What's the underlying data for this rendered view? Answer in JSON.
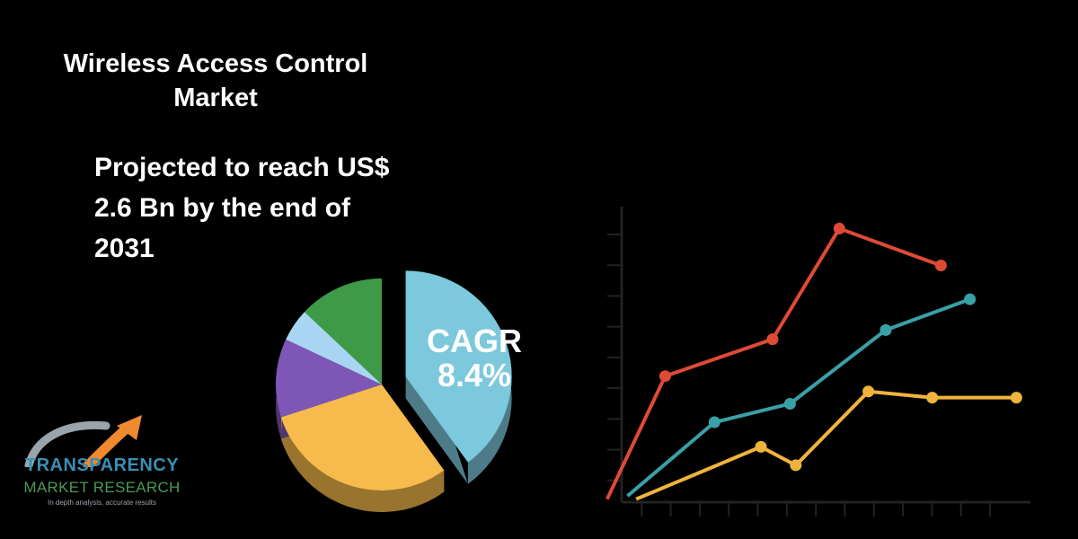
{
  "heading": {
    "title_line1": "Wireless Access Control",
    "title_line2": "Market",
    "projection_line1": "Projected to reach US$",
    "projection_line2": "2.6 Bn by the end of",
    "projection_line3": "2031"
  },
  "pie": {
    "cagr_label": "CAGR",
    "cagr_value": "8.4%"
  },
  "logo": {
    "line1": "TRANSPARENCY",
    "line2": "MARKET RESEARCH",
    "tagline": "In depth analysis, accurate results"
  },
  "colors": {
    "background": "#000000",
    "text": "#ffffff",
    "red": "#e04a35",
    "teal": "#3aa0a8",
    "yellow": "#f0b43c",
    "pie_blue": "#7cc8dc",
    "pie_yellow": "#f6bb4c",
    "pie_purple": "#7e56b6",
    "pie_light_blue": "#a8d6f2",
    "pie_green": "#3f9a47",
    "logo_orange": "#f08a2e",
    "logo_blue": "#3a8fb4",
    "logo_green": "#4a9a5a"
  },
  "chart_data": [
    {
      "type": "pie",
      "slices": [
        {
          "label": "CAGR 8.4%",
          "value": 0.4,
          "color": "#7cc8dc"
        },
        {
          "label": "",
          "value": 0.3,
          "color": "#f6bb4c"
        },
        {
          "label": "",
          "value": 0.12,
          "color": "#7e56b6"
        },
        {
          "label": "",
          "value": 0.05,
          "color": "#a8d6f2"
        },
        {
          "label": "",
          "value": 0.13,
          "color": "#3f9a47"
        }
      ],
      "exploded_slice": 0,
      "style": "3d"
    },
    {
      "type": "line",
      "title": "",
      "xlabel": "",
      "ylabel": "",
      "x_ticks": 13,
      "y_ticks": 9,
      "xlim": [
        0,
        13
      ],
      "ylim": [
        0,
        9
      ],
      "grid": false,
      "series": [
        {
          "color": "#e04a35",
          "points": [
            [
              -0.5,
              0.1
            ],
            [
              1.5,
              4.1
            ],
            [
              5.2,
              5.3
            ],
            [
              7.5,
              8.9
            ],
            [
              11.0,
              7.7
            ]
          ],
          "markers": [
            false,
            true,
            true,
            true,
            true
          ]
        },
        {
          "color": "#3aa0a8",
          "points": [
            [
              0.2,
              0.2
            ],
            [
              3.2,
              2.6
            ],
            [
              5.8,
              3.2
            ],
            [
              9.1,
              5.6
            ],
            [
              12.0,
              6.6
            ]
          ],
          "markers": [
            false,
            true,
            true,
            true,
            true
          ]
        },
        {
          "color": "#f0b43c",
          "points": [
            [
              0.5,
              0.1
            ],
            [
              4.8,
              1.8
            ],
            [
              6.0,
              1.2
            ],
            [
              8.5,
              3.6
            ],
            [
              10.7,
              3.4
            ],
            [
              13.6,
              3.4
            ]
          ],
          "markers": [
            false,
            true,
            true,
            true,
            true,
            true
          ]
        }
      ]
    }
  ]
}
